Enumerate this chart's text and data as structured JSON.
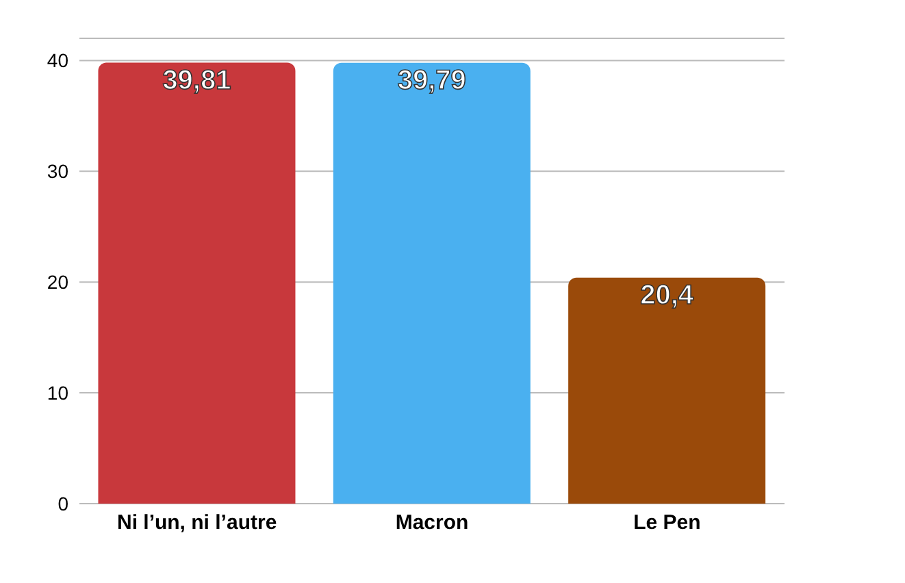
{
  "chart_data": {
    "type": "bar",
    "categories": [
      "Ni l’un, ni l’autre",
      "Macron",
      "Le Pen"
    ],
    "values": [
      39.81,
      39.79,
      20.4
    ],
    "colors": [
      "#c8383c",
      "#4ab0f0",
      "#9a4a0a"
    ],
    "value_labels": [
      "39,81",
      "39,79",
      "20,4"
    ],
    "ylim": [
      0,
      42
    ],
    "yticks": [
      0,
      10,
      20,
      30,
      40
    ],
    "grid": "y"
  }
}
